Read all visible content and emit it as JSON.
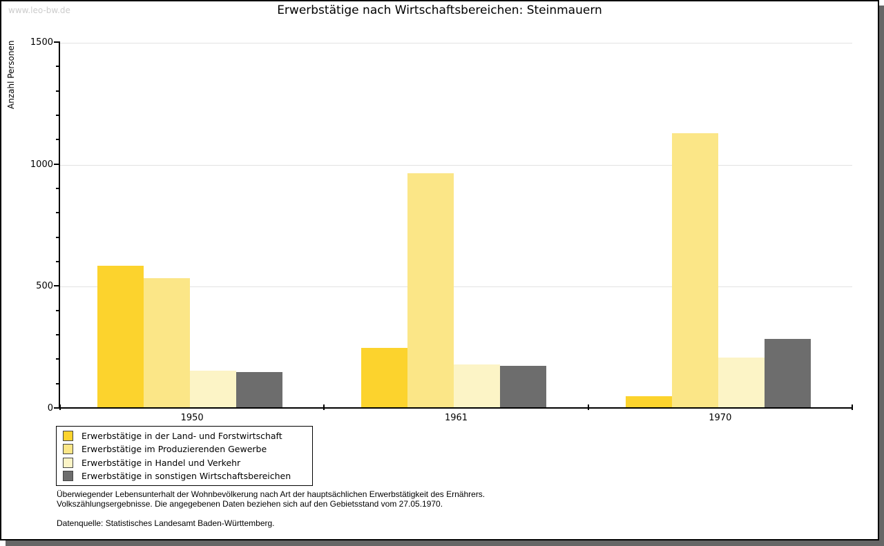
{
  "watermark": "www.leo-bw.de",
  "title": "Erwerbstätige nach Wirtschaftsbereichen: Steinmauern",
  "chart_data": {
    "type": "bar",
    "title": "Erwerbstätige nach Wirtschaftsbereichen: Steinmauern",
    "xlabel": "",
    "ylabel": "Anzahl Personen",
    "categories": [
      "1950",
      "1961",
      "1970"
    ],
    "series": [
      {
        "name": "Erwerbstätige in der Land- und Forstwirtschaft",
        "color": "#fcd32d",
        "values": [
          585,
          250,
          50
        ]
      },
      {
        "name": "Erwerbstätige im Produzierenden Gewerbe",
        "color": "#fbe687",
        "values": [
          535,
          965,
          1130
        ]
      },
      {
        "name": "Erwerbstätige in Handel und Verkehr",
        "color": "#fcf4c6",
        "values": [
          155,
          180,
          210
        ]
      },
      {
        "name": "Erwerbstätige in sonstigen Wirtschaftsbereichen",
        "color": "#6d6d6d",
        "values": [
          150,
          175,
          285
        ]
      }
    ],
    "ylim": [
      0,
      1500
    ],
    "y_tick_labels": [
      "0",
      "500",
      "1000",
      "1500"
    ],
    "y_major_step": 500,
    "y_minor_step": 100,
    "grid": true,
    "legend_position": "bottom-left"
  },
  "footer": {
    "note_line1": "Überwiegender Lebensunterhalt der Wohnbevölkerung nach Art der hauptsächlichen Erwerbstätigkeit des Ernährers.",
    "note_line2": "Volkszählungsergebnisse. Die angegebenen Daten beziehen sich auf den Gebietsstand vom 27.05.1970.",
    "source": "Datenquelle: Statistisches Landesamt Baden-Württemberg."
  }
}
